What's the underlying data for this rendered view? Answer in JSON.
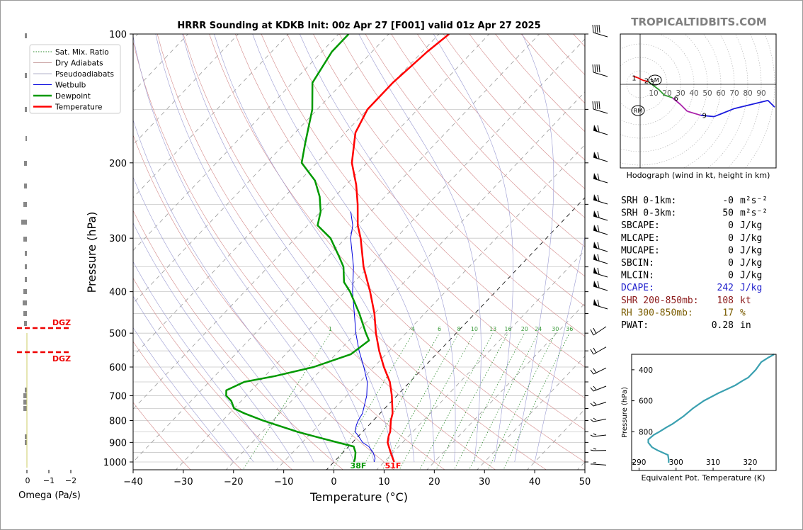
{
  "title": "HRRR Sounding at KDKB Init: 00z Apr 27 [F001] valid 01z Apr 27 2025",
  "brand": "TROPICALTIDBITS.COM",
  "colors": {
    "temperature": "#ff0000",
    "dewpoint": "#009900",
    "wetbulb": "#0000dd",
    "dry": "#d48a8a",
    "moist": "#9a9ad2",
    "mix": "#2e8b2e",
    "isotherm": "#777777",
    "theta_e": "#3aa0b0",
    "dgz": "#ee0000",
    "omega": "#888888",
    "dcape": "#2020cc",
    "shr": "#8b1a1a",
    "rh": "#7a5c00"
  },
  "skewt": {
    "xlabel": "Temperature (°C)",
    "ylabel": "Pressure (hPa)",
    "x_ticks": [
      "−40",
      "−30",
      "−20",
      "−10",
      "0",
      "10",
      "20",
      "30",
      "40",
      "50"
    ],
    "y_ticks": [
      "100",
      "200",
      "300",
      "400",
      "500",
      "600",
      "700",
      "800",
      "900",
      "1000"
    ],
    "xlim": [
      -40,
      50
    ],
    "ylim": [
      1050,
      100
    ],
    "legend": [
      "Sat. Mix. Ratio",
      "Dry Adiabats",
      "Pseudoadiabats",
      "Wetbulb",
      "Dewpoint",
      "Temperature"
    ],
    "mix_labels": [
      "1",
      "4",
      "6",
      "8",
      "10",
      "13",
      "16",
      "20",
      "24",
      "30",
      "36"
    ],
    "surface_dewpoint_label": "38F",
    "surface_temp_label": "51F"
  },
  "omega": {
    "xlabel": "Omega (Pa/s)",
    "x_ticks": [
      "0",
      "−1",
      "−2"
    ],
    "dgz_label": "DGZ"
  },
  "hodograph": {
    "caption": "Hodograph (wind in kt, height in km)",
    "ring_labels": [
      "10",
      "20",
      "30",
      "40",
      "50",
      "60",
      "70",
      "80",
      "90"
    ],
    "height_labels": [
      "1",
      "2",
      "3",
      "6",
      "9"
    ],
    "lm_label": "LM",
    "rm_label": "RM"
  },
  "params": [
    {
      "label": "SRH 0-1km:",
      "value": "-0",
      "unit": "m²s⁻²",
      "color": "#000000"
    },
    {
      "label": "SRH 0-3km:",
      "value": "50",
      "unit": "m²s⁻²",
      "color": "#000000"
    },
    {
      "label": "SBCAPE:",
      "value": "0",
      "unit": "J/kg",
      "color": "#000000"
    },
    {
      "label": "MLCAPE:",
      "value": "0",
      "unit": "J/kg",
      "color": "#000000"
    },
    {
      "label": "MUCAPE:",
      "value": "0",
      "unit": "J/kg",
      "color": "#000000"
    },
    {
      "label": "SBCIN:",
      "value": "0",
      "unit": "J/kg",
      "color": "#000000"
    },
    {
      "label": "MLCIN:",
      "value": "0",
      "unit": "J/kg",
      "color": "#000000"
    },
    {
      "label": "DCAPE:",
      "value": "242",
      "unit": "J/kg",
      "color": "#2020cc"
    },
    {
      "label": "SHR 200-850mb:",
      "value": "108",
      "unit": "kt",
      "color": "#8b1a1a"
    },
    {
      "label": "RH 300-850mb:",
      "value": "17",
      "unit": "%",
      "color": "#7a5c00"
    },
    {
      "label": "PWAT:",
      "value": "0.28",
      "unit": "in",
      "color": "#000000"
    }
  ],
  "theta_e_panel": {
    "xlabel": "Equivalent Pot. Temperature (K)",
    "ylabel": "Pressure (hPa)",
    "x_ticks": [
      "290",
      "300",
      "310",
      "320"
    ],
    "y_ticks": [
      "400",
      "600",
      "800"
    ]
  },
  "chart_data": [
    {
      "type": "line",
      "title": "HRRR Sounding at KDKB Init: 00z Apr 27 [F001] valid 01z Apr 27 2025",
      "xlabel": "Temperature (°C)",
      "ylabel": "Pressure (hPa)",
      "xlim": [
        -40,
        50
      ],
      "ylim": [
        1050,
        100
      ],
      "y_scale": "log",
      "grid": true,
      "legend_position": "top-left",
      "series": [
        {
          "name": "Temperature",
          "points": [
            [
              1000,
              12
            ],
            [
              980,
              11
            ],
            [
              950,
              9.5
            ],
            [
              920,
              8
            ],
            [
              900,
              7
            ],
            [
              870,
              6
            ],
            [
              850,
              5.5
            ],
            [
              800,
              3.5
            ],
            [
              770,
              2.5
            ],
            [
              700,
              -1
            ],
            [
              650,
              -4
            ],
            [
              600,
              -8
            ],
            [
              550,
              -12
            ],
            [
              500,
              -16
            ],
            [
              450,
              -20
            ],
            [
              400,
              -25
            ],
            [
              350,
              -31
            ],
            [
              300,
              -37
            ],
            [
              280,
              -40
            ],
            [
              250,
              -44
            ],
            [
              225,
              -48
            ],
            [
              200,
              -53
            ],
            [
              170,
              -58
            ],
            [
              150,
              -60
            ],
            [
              130,
              -60
            ],
            [
              110,
              -59
            ],
            [
              100,
              -58
            ]
          ]
        },
        {
          "name": "Dewpoint",
          "points": [
            [
              1000,
              4
            ],
            [
              980,
              3.5
            ],
            [
              950,
              2.5
            ],
            [
              920,
              1
            ],
            [
              900,
              -3
            ],
            [
              870,
              -9
            ],
            [
              850,
              -13
            ],
            [
              800,
              -22
            ],
            [
              770,
              -27
            ],
            [
              750,
              -30
            ],
            [
              720,
              -32
            ],
            [
              700,
              -34
            ],
            [
              680,
              -35
            ],
            [
              650,
              -33
            ],
            [
              630,
              -28
            ],
            [
              600,
              -22
            ],
            [
              560,
              -17
            ],
            [
              520,
              -16
            ],
            [
              500,
              -18
            ],
            [
              450,
              -23
            ],
            [
              400,
              -29
            ],
            [
              380,
              -32
            ],
            [
              350,
              -35
            ],
            [
              330,
              -38
            ],
            [
              300,
              -43
            ],
            [
              280,
              -48
            ],
            [
              260,
              -50
            ],
            [
              240,
              -53
            ],
            [
              220,
              -57
            ],
            [
              200,
              -63
            ],
            [
              180,
              -66
            ],
            [
              150,
              -71
            ],
            [
              130,
              -76
            ],
            [
              110,
              -78
            ],
            [
              100,
              -78
            ]
          ]
        },
        {
          "name": "Wetbulb",
          "points": [
            [
              1000,
              8
            ],
            [
              980,
              7.5
            ],
            [
              950,
              6
            ],
            [
              920,
              4
            ],
            [
              900,
              2
            ],
            [
              870,
              0
            ],
            [
              850,
              -1.5
            ],
            [
              820,
              -2.5
            ],
            [
              800,
              -3
            ],
            [
              770,
              -3.5
            ],
            [
              700,
              -6
            ],
            [
              650,
              -8.5
            ],
            [
              600,
              -12
            ],
            [
              550,
              -16
            ],
            [
              500,
              -20
            ],
            [
              450,
              -24
            ],
            [
              400,
              -28.5
            ],
            [
              350,
              -33
            ],
            [
              300,
              -39
            ],
            [
              280,
              -41
            ],
            [
              260,
              -44
            ]
          ]
        }
      ],
      "labels": {
        "surface_temperature": "51F",
        "surface_dewpoint": "38F"
      }
    },
    {
      "type": "line",
      "title": "",
      "xlabel": "Equivalent Pot. Temperature (K)",
      "ylabel": "Pressure (hPa)",
      "xlim": [
        288,
        327
      ],
      "ylim": [
        1050,
        300
      ],
      "series": [
        {
          "name": "",
          "points": [
            [
              1000,
              298
            ],
            [
              980,
              298
            ],
            [
              950,
              297.8
            ],
            [
              920,
              295
            ],
            [
              900,
              293.5
            ],
            [
              870,
              292.5
            ],
            [
              850,
              292.5
            ],
            [
              820,
              294
            ],
            [
              800,
              295.5
            ],
            [
              770,
              297.5
            ],
            [
              750,
              299
            ],
            [
              700,
              302
            ],
            [
              670,
              303.5
            ],
            [
              650,
              304.5
            ],
            [
              600,
              307.5
            ],
            [
              550,
              311.5
            ],
            [
              500,
              316
            ],
            [
              470,
              318
            ],
            [
              450,
              319.5
            ],
            [
              400,
              321.5
            ],
            [
              350,
              323
            ],
            [
              320,
              325
            ],
            [
              300,
              326.5
            ]
          ]
        }
      ]
    },
    {
      "type": "line",
      "title": "Hodograph (wind in kt, height in km)",
      "xlabel": "",
      "ylabel": "",
      "series": [
        {
          "name": "",
          "points": [
            [
              0,
              -5,
              6
            ],
            [
              1,
              -2,
              5
            ],
            [
              2,
              2,
              3
            ],
            [
              3,
              6,
              2
            ],
            [
              4,
              14,
              -4
            ],
            [
              5,
              18,
              -8
            ],
            [
              6,
              24,
              -10
            ],
            [
              7,
              30,
              -15
            ],
            [
              8,
              35,
              -20
            ],
            [
              9,
              45,
              -23
            ],
            [
              10,
              55,
              -24
            ],
            [
              11,
              70,
              -18
            ],
            [
              12,
              95,
              -12
            ],
            [
              12.5,
              100,
              -17
            ]
          ],
          "columns": [
            "height_km",
            "u_kt",
            "v_kt"
          ]
        }
      ],
      "storm_motion": {
        "LM": [
          11,
          2
        ],
        "RM": [
          1,
          -14
        ]
      }
    }
  ]
}
